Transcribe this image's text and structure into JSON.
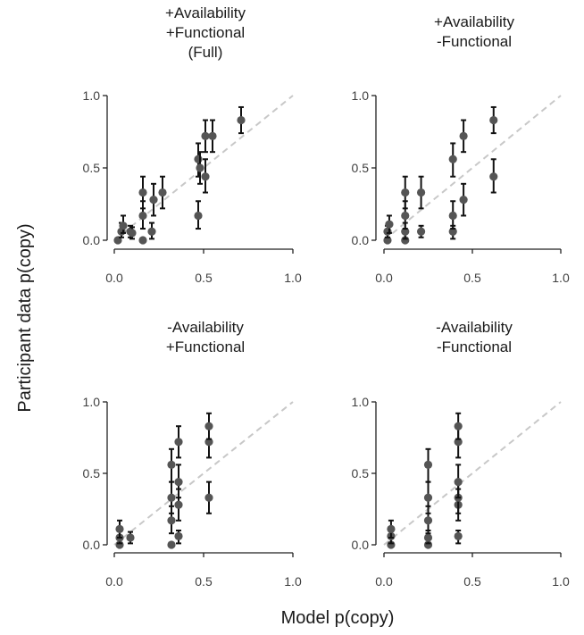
{
  "figure": {
    "xlabel": "Model p(copy)",
    "ylabel": "Participant data p(copy)"
  },
  "colors": {
    "point": "#555555",
    "errorbar": "#111111",
    "diagonal": "#c8c8c8",
    "axis": "#222222",
    "text": "#1a1a1a"
  },
  "chart_data": [
    {
      "type": "scatter",
      "title": [
        "+Availability",
        "+Functional",
        "(Full)"
      ],
      "xlim": [
        0,
        1
      ],
      "ylim": [
        0,
        1
      ],
      "xticks": [
        "0.0",
        "0.5",
        "1.0"
      ],
      "yticks": [
        "0.0",
        "0.5",
        "1.0"
      ],
      "diagonal": true,
      "grid": false,
      "points": [
        {
          "x": 0.02,
          "y": 0.0,
          "lo": 0.0,
          "hi": 0.0
        },
        {
          "x": 0.04,
          "y": 0.06,
          "lo": 0.02,
          "hi": 0.12
        },
        {
          "x": 0.05,
          "y": 0.1,
          "lo": 0.05,
          "hi": 0.17
        },
        {
          "x": 0.09,
          "y": 0.06,
          "lo": 0.02,
          "hi": 0.1
        },
        {
          "x": 0.1,
          "y": 0.05,
          "lo": 0.01,
          "hi": 0.09
        },
        {
          "x": 0.16,
          "y": 0.0,
          "lo": 0.0,
          "hi": 0.0
        },
        {
          "x": 0.16,
          "y": 0.17,
          "lo": 0.08,
          "hi": 0.27
        },
        {
          "x": 0.16,
          "y": 0.33,
          "lo": 0.22,
          "hi": 0.44
        },
        {
          "x": 0.21,
          "y": 0.06,
          "lo": 0.01,
          "hi": 0.12
        },
        {
          "x": 0.22,
          "y": 0.28,
          "lo": 0.17,
          "hi": 0.39
        },
        {
          "x": 0.27,
          "y": 0.33,
          "lo": 0.22,
          "hi": 0.44
        },
        {
          "x": 0.47,
          "y": 0.17,
          "lo": 0.08,
          "hi": 0.27
        },
        {
          "x": 0.47,
          "y": 0.56,
          "lo": 0.44,
          "hi": 0.67
        },
        {
          "x": 0.48,
          "y": 0.5,
          "lo": 0.39,
          "hi": 0.61
        },
        {
          "x": 0.51,
          "y": 0.44,
          "lo": 0.33,
          "hi": 0.56
        },
        {
          "x": 0.51,
          "y": 0.72,
          "lo": 0.61,
          "hi": 0.83
        },
        {
          "x": 0.55,
          "y": 0.72,
          "lo": 0.61,
          "hi": 0.83
        },
        {
          "x": 0.71,
          "y": 0.83,
          "lo": 0.74,
          "hi": 0.92
        }
      ]
    },
    {
      "type": "scatter",
      "title": [
        "+Availability",
        "-Functional"
      ],
      "xlim": [
        0,
        1
      ],
      "ylim": [
        0,
        1
      ],
      "xticks": [
        "0.0",
        "0.5",
        "1.0"
      ],
      "yticks": [
        "0.0",
        "0.5",
        "1.0"
      ],
      "diagonal": true,
      "grid": false,
      "points": [
        {
          "x": 0.02,
          "y": 0.0,
          "lo": 0.0,
          "hi": 0.0
        },
        {
          "x": 0.02,
          "y": 0.06,
          "lo": 0.02,
          "hi": 0.1
        },
        {
          "x": 0.03,
          "y": 0.11,
          "lo": 0.05,
          "hi": 0.17
        },
        {
          "x": 0.12,
          "y": 0.0,
          "lo": 0.0,
          "hi": 0.0
        },
        {
          "x": 0.12,
          "y": 0.06,
          "lo": 0.01,
          "hi": 0.12
        },
        {
          "x": 0.12,
          "y": 0.17,
          "lo": 0.08,
          "hi": 0.27
        },
        {
          "x": 0.12,
          "y": 0.33,
          "lo": 0.22,
          "hi": 0.44
        },
        {
          "x": 0.21,
          "y": 0.06,
          "lo": 0.02,
          "hi": 0.1
        },
        {
          "x": 0.21,
          "y": 0.33,
          "lo": 0.22,
          "hi": 0.44
        },
        {
          "x": 0.39,
          "y": 0.06,
          "lo": 0.01,
          "hi": 0.1
        },
        {
          "x": 0.39,
          "y": 0.17,
          "lo": 0.08,
          "hi": 0.27
        },
        {
          "x": 0.39,
          "y": 0.56,
          "lo": 0.44,
          "hi": 0.67
        },
        {
          "x": 0.45,
          "y": 0.28,
          "lo": 0.17,
          "hi": 0.39
        },
        {
          "x": 0.45,
          "y": 0.72,
          "lo": 0.61,
          "hi": 0.83
        },
        {
          "x": 0.62,
          "y": 0.44,
          "lo": 0.33,
          "hi": 0.56
        },
        {
          "x": 0.62,
          "y": 0.83,
          "lo": 0.74,
          "hi": 0.92
        }
      ]
    },
    {
      "type": "scatter",
      "title": [
        "-Availability",
        "+Functional"
      ],
      "xlim": [
        0,
        1
      ],
      "ylim": [
        0,
        1
      ],
      "xticks": [
        "0.0",
        "0.5",
        "1.0"
      ],
      "yticks": [
        "0.0",
        "0.5",
        "1.0"
      ],
      "diagonal": true,
      "grid": false,
      "points": [
        {
          "x": 0.03,
          "y": 0.0,
          "lo": 0.0,
          "hi": 0.0
        },
        {
          "x": 0.03,
          "y": 0.05,
          "lo": 0.01,
          "hi": 0.1
        },
        {
          "x": 0.03,
          "y": 0.11,
          "lo": 0.05,
          "hi": 0.17
        },
        {
          "x": 0.09,
          "y": 0.05,
          "lo": 0.01,
          "hi": 0.09
        },
        {
          "x": 0.32,
          "y": 0.0,
          "lo": 0.0,
          "hi": 0.0
        },
        {
          "x": 0.32,
          "y": 0.17,
          "lo": 0.08,
          "hi": 0.27
        },
        {
          "x": 0.32,
          "y": 0.33,
          "lo": 0.22,
          "hi": 0.44
        },
        {
          "x": 0.32,
          "y": 0.56,
          "lo": 0.44,
          "hi": 0.67
        },
        {
          "x": 0.36,
          "y": 0.06,
          "lo": 0.01,
          "hi": 0.1
        },
        {
          "x": 0.36,
          "y": 0.28,
          "lo": 0.17,
          "hi": 0.39
        },
        {
          "x": 0.36,
          "y": 0.44,
          "lo": 0.33,
          "hi": 0.56
        },
        {
          "x": 0.36,
          "y": 0.72,
          "lo": 0.61,
          "hi": 0.83
        },
        {
          "x": 0.53,
          "y": 0.33,
          "lo": 0.22,
          "hi": 0.44
        },
        {
          "x": 0.53,
          "y": 0.72,
          "lo": 0.61,
          "hi": 0.83
        },
        {
          "x": 0.53,
          "y": 0.83,
          "lo": 0.74,
          "hi": 0.92
        }
      ]
    },
    {
      "type": "scatter",
      "title": [
        "-Availability",
        "-Functional"
      ],
      "xlim": [
        0,
        1
      ],
      "ylim": [
        0,
        1
      ],
      "xticks": [
        "0.0",
        "0.5",
        "1.0"
      ],
      "yticks": [
        "0.0",
        "0.5",
        "1.0"
      ],
      "diagonal": true,
      "grid": false,
      "points": [
        {
          "x": 0.04,
          "y": 0.0,
          "lo": 0.0,
          "hi": 0.0
        },
        {
          "x": 0.04,
          "y": 0.06,
          "lo": 0.01,
          "hi": 0.1
        },
        {
          "x": 0.04,
          "y": 0.11,
          "lo": 0.05,
          "hi": 0.17
        },
        {
          "x": 0.25,
          "y": 0.0,
          "lo": 0.0,
          "hi": 0.0
        },
        {
          "x": 0.25,
          "y": 0.05,
          "lo": 0.01,
          "hi": 0.1
        },
        {
          "x": 0.25,
          "y": 0.17,
          "lo": 0.08,
          "hi": 0.27
        },
        {
          "x": 0.25,
          "y": 0.33,
          "lo": 0.22,
          "hi": 0.44
        },
        {
          "x": 0.25,
          "y": 0.56,
          "lo": 0.44,
          "hi": 0.67
        },
        {
          "x": 0.42,
          "y": 0.06,
          "lo": 0.01,
          "hi": 0.1
        },
        {
          "x": 0.42,
          "y": 0.28,
          "lo": 0.17,
          "hi": 0.39
        },
        {
          "x": 0.42,
          "y": 0.33,
          "lo": 0.22,
          "hi": 0.44
        },
        {
          "x": 0.42,
          "y": 0.44,
          "lo": 0.33,
          "hi": 0.56
        },
        {
          "x": 0.42,
          "y": 0.72,
          "lo": 0.61,
          "hi": 0.83
        },
        {
          "x": 0.42,
          "y": 0.83,
          "lo": 0.74,
          "hi": 0.92
        }
      ]
    }
  ]
}
